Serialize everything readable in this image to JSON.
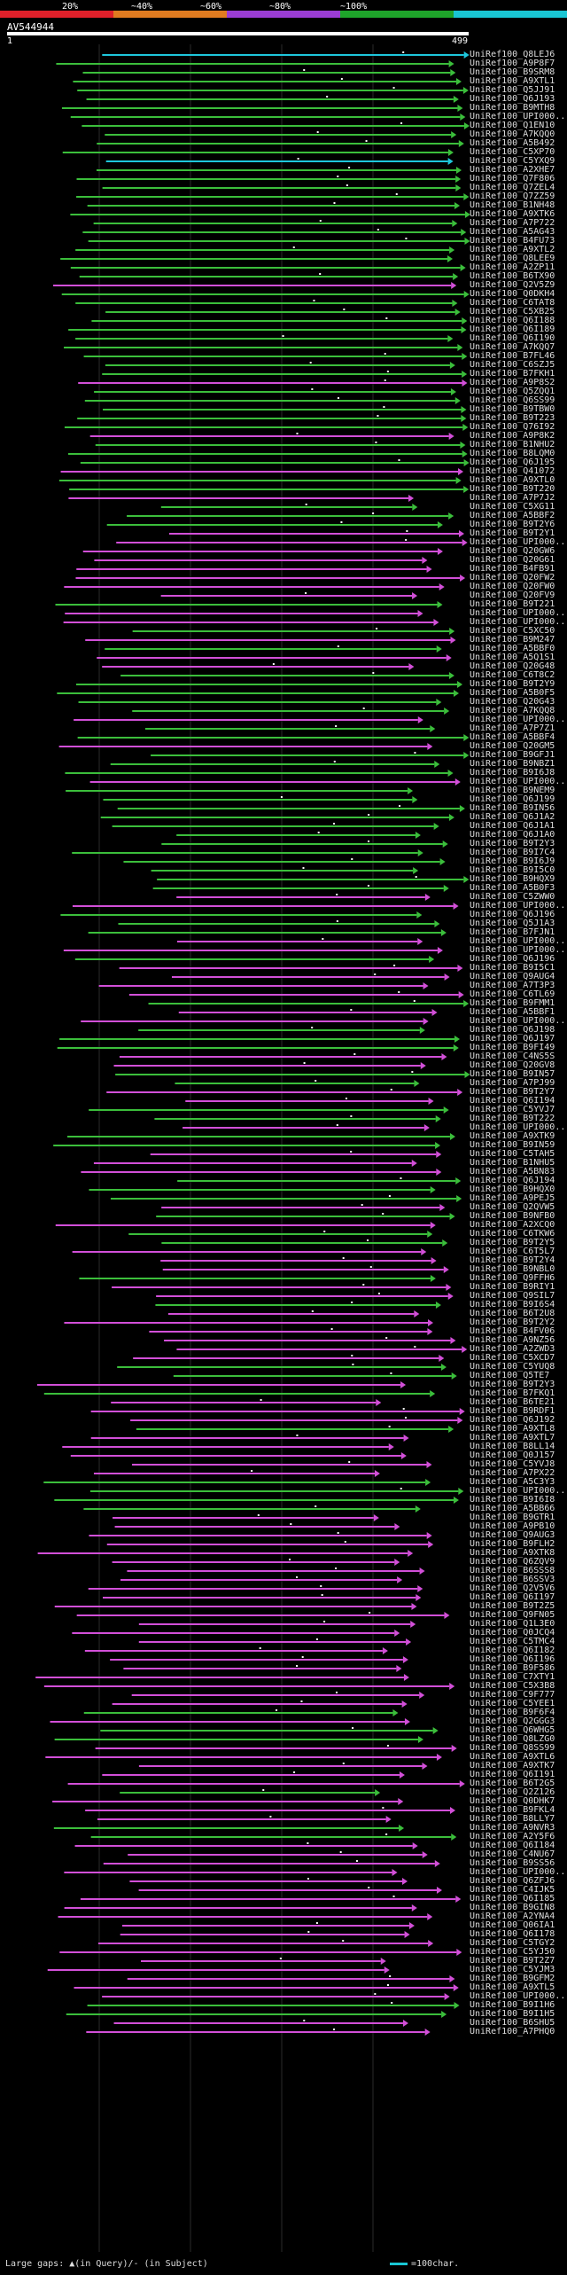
{
  "scale": {
    "labels": [
      "20%",
      "~40%",
      "~60%",
      "~80%",
      "~100%"
    ],
    "colors": [
      "#e0202a",
      "#e07b20",
      "#9b3dd4",
      "#1ea42a",
      "#19c6d4"
    ]
  },
  "query": {
    "name": "AV544944",
    "start": "1",
    "end": "499"
  },
  "colors": {
    "magenta": "#d24fd8",
    "green": "#3bbe3b",
    "cyan": "#1ec7dc",
    "grid": "#2a2a2a"
  },
  "hits": [
    {
      "label": "UniRef100_Q8LEJ6",
      "color": "cyan"
    },
    {
      "label": "UniRef100_A9P8F7",
      "color": "green"
    },
    {
      "label": "UniRef100_B9SRM8",
      "color": "green"
    },
    {
      "label": "UniRef100_A9XTL1",
      "color": "green"
    },
    {
      "label": "UniRef100_Q5JJ91",
      "color": "green"
    },
    {
      "label": "UniRef100_Q6J193",
      "color": "green"
    },
    {
      "label": "UniRef100_B9MTH8",
      "color": "green"
    },
    {
      "label": "UniRef100_UPI000...",
      "color": "green"
    },
    {
      "label": "UniRef100_Q1EN10",
      "color": "green"
    },
    {
      "label": "UniRef100_A7KQQ0",
      "color": "green"
    },
    {
      "label": "UniRef100_A5B492",
      "color": "green"
    },
    {
      "label": "UniRef100_C5XP70",
      "color": "green"
    },
    {
      "label": "UniRef100_C5YXQ9",
      "color": "cyan"
    },
    {
      "label": "UniRef100_A2XHE7",
      "color": "green"
    },
    {
      "label": "UniRef100_Q7F806",
      "color": "green"
    },
    {
      "label": "UniRef100_Q7ZEL4",
      "color": "green"
    },
    {
      "label": "UniRef100_Q7ZZ59",
      "color": "green"
    },
    {
      "label": "UniRef100_B1NH48",
      "color": "green"
    },
    {
      "label": "UniRef100_A9XTK6",
      "color": "green"
    },
    {
      "label": "UniRef100_A7P722",
      "color": "green"
    },
    {
      "label": "UniRef100_A5AG43",
      "color": "green"
    },
    {
      "label": "UniRef100_B4FU73",
      "color": "green"
    },
    {
      "label": "UniRef100_A9XTL2",
      "color": "green"
    },
    {
      "label": "UniRef100_Q8LEE9",
      "color": "green"
    },
    {
      "label": "UniRef100_A2ZP11",
      "color": "green"
    },
    {
      "label": "UniRef100_B6TX90",
      "color": "green"
    },
    {
      "label": "UniRef100_Q2V5Z9",
      "color": "magenta"
    },
    {
      "label": "UniRef100_Q0DKH4",
      "color": "green"
    },
    {
      "label": "UniRef100_C6TAT8",
      "color": "green"
    },
    {
      "label": "UniRef100_C5XB25",
      "color": "green"
    },
    {
      "label": "UniRef100_Q6I188",
      "color": "green"
    },
    {
      "label": "UniRef100_Q6I189",
      "color": "green"
    },
    {
      "label": "UniRef100_Q6I190",
      "color": "green"
    },
    {
      "label": "UniRef100_A7KQQ7",
      "color": "green"
    },
    {
      "label": "UniRef100_B7FL46",
      "color": "green"
    },
    {
      "label": "UniRef100_C6SZJ5",
      "color": "green"
    },
    {
      "label": "UniRef100_B7FKH1",
      "color": "green"
    },
    {
      "label": "UniRef100_A9P8S2",
      "color": "magenta"
    },
    {
      "label": "UniRef100_Q5ZQQ1",
      "color": "green"
    },
    {
      "label": "UniRef100_Q6SS99",
      "color": "green"
    },
    {
      "label": "UniRef100_B9TBW0",
      "color": "green"
    },
    {
      "label": "UniRef100_B9T223",
      "color": "green"
    },
    {
      "label": "UniRef100_Q76I92",
      "color": "green"
    },
    {
      "label": "UniRef100_A9P8K2",
      "color": "magenta"
    },
    {
      "label": "UniRef100_B1NHU2",
      "color": "green"
    },
    {
      "label": "UniRef100_B8LQM0",
      "color": "green"
    },
    {
      "label": "UniRef100_Q6J195",
      "color": "green"
    },
    {
      "label": "UniRef100_Q41072",
      "color": "magenta"
    },
    {
      "label": "UniRef100_A9XTL0",
      "color": "green"
    },
    {
      "label": "UniRef100_B9T220",
      "color": "green"
    },
    {
      "label": "UniRef100_A7P7J2",
      "color": "magenta"
    },
    {
      "label": "UniRef100_C5XG11",
      "color": "green"
    },
    {
      "label": "UniRef100_A5BBF2",
      "color": "green"
    },
    {
      "label": "UniRef100_B9T2Y6",
      "color": "green"
    },
    {
      "label": "UniRef100_B9T2Y1",
      "color": "magenta"
    },
    {
      "label": "UniRef100_UPI000...",
      "color": "magenta"
    },
    {
      "label": "UniRef100_Q20GW6",
      "color": "magenta"
    },
    {
      "label": "UniRef100_Q20G61",
      "color": "magenta"
    },
    {
      "label": "UniRef100_B4FB91",
      "color": "magenta"
    },
    {
      "label": "UniRef100_Q20FW2",
      "color": "magenta"
    },
    {
      "label": "UniRef100_Q20FW0",
      "color": "magenta"
    },
    {
      "label": "UniRef100_Q20FV9",
      "color": "magenta"
    },
    {
      "label": "UniRef100_B9T221",
      "color": "green"
    },
    {
      "label": "UniRef100_UPI000...",
      "color": "magenta"
    },
    {
      "label": "UniRef100_UPI000...",
      "color": "magenta"
    },
    {
      "label": "UniRef100_C5XC50",
      "color": "green"
    },
    {
      "label": "UniRef100_B9M247",
      "color": "magenta"
    },
    {
      "label": "UniRef100_A5BBF0",
      "color": "green"
    },
    {
      "label": "UniRef100_A5Q1S1",
      "color": "magenta"
    },
    {
      "label": "UniRef100_Q20G48",
      "color": "magenta"
    },
    {
      "label": "UniRef100_C6T8C2",
      "color": "green"
    },
    {
      "label": "UniRef100_B9T2Y9",
      "color": "green"
    },
    {
      "label": "UniRef100_A5B0F5",
      "color": "green"
    },
    {
      "label": "UniRef100_Q20G43",
      "color": "green"
    },
    {
      "label": "UniRef100_A7KQQ8",
      "color": "green"
    },
    {
      "label": "UniRef100_UPI000...",
      "color": "magenta"
    },
    {
      "label": "UniRef100_A7P7Z1",
      "color": "green"
    },
    {
      "label": "UniRef100_A5BBF4",
      "color": "green"
    },
    {
      "label": "UniRef100_Q20GM5",
      "color": "magenta"
    },
    {
      "label": "UniRef100_B9GFJ1",
      "color": "green"
    },
    {
      "label": "UniRef100_B9NBZ1",
      "color": "green"
    },
    {
      "label": "UniRef100_B9I6J8",
      "color": "green"
    },
    {
      "label": "UniRef100_UPI000...",
      "color": "magenta"
    },
    {
      "label": "UniRef100_B9NEM9",
      "color": "green"
    },
    {
      "label": "UniRef100_Q6J199",
      "color": "green"
    },
    {
      "label": "UniRef100_B9IN56",
      "color": "green"
    },
    {
      "label": "UniRef100_Q6J1A2",
      "color": "green"
    },
    {
      "label": "UniRef100_Q6J1A1",
      "color": "green"
    },
    {
      "label": "UniRef100_Q6J1A0",
      "color": "green"
    },
    {
      "label": "UniRef100_B9T2Y3",
      "color": "green"
    },
    {
      "label": "UniRef100_B9I7C4",
      "color": "green"
    },
    {
      "label": "UniRef100_B9I6J9",
      "color": "green"
    },
    {
      "label": "UniRef100_B9I5C0",
      "color": "green"
    },
    {
      "label": "UniRef100_B9HQX9",
      "color": "green"
    },
    {
      "label": "UniRef100_A5B0F3",
      "color": "green"
    },
    {
      "label": "UniRef100_C5ZWW0",
      "color": "magenta"
    },
    {
      "label": "UniRef100_UPI000...",
      "color": "magenta"
    },
    {
      "label": "UniRef100_Q6J196",
      "color": "green"
    },
    {
      "label": "UniRef100_Q5J1A3",
      "color": "green"
    },
    {
      "label": "UniRef100_B7FJN1",
      "color": "green"
    },
    {
      "label": "UniRef100_UPI000...",
      "color": "magenta"
    },
    {
      "label": "UniRef100_UPI000...",
      "color": "magenta"
    },
    {
      "label": "UniRef100_Q6J196",
      "color": "green"
    },
    {
      "label": "UniRef100_B9I5C1",
      "color": "magenta"
    },
    {
      "label": "UniRef100_Q9AUG4",
      "color": "magenta"
    },
    {
      "label": "UniRef100_A7T3P3",
      "color": "magenta"
    },
    {
      "label": "UniRef100_C6TL69",
      "color": "magenta"
    },
    {
      "label": "UniRef100_B9FMM1",
      "color": "green"
    },
    {
      "label": "UniRef100_A5BBF1",
      "color": "magenta"
    },
    {
      "label": "UniRef100_UPI000...",
      "color": "magenta"
    },
    {
      "label": "UniRef100_Q6J198",
      "color": "green"
    },
    {
      "label": "UniRef100_Q6J197",
      "color": "green"
    },
    {
      "label": "UniRef100_B9FI49",
      "color": "green"
    },
    {
      "label": "UniRef100_C4NS5S",
      "color": "magenta"
    },
    {
      "label": "UniRef100_Q20GV8",
      "color": "magenta"
    },
    {
      "label": "UniRef100_B9IN57",
      "color": "green"
    },
    {
      "label": "UniRef100_A7PJ99",
      "color": "green"
    },
    {
      "label": "UniRef100_B9T2Y7",
      "color": "magenta"
    },
    {
      "label": "UniRef100_Q6I194",
      "color": "magenta"
    },
    {
      "label": "UniRef100_C5YVJ7",
      "color": "green"
    },
    {
      "label": "UniRef100_B9T222",
      "color": "green"
    },
    {
      "label": "UniRef100_UPI000...",
      "color": "magenta"
    },
    {
      "label": "UniRef100_A9XTK9",
      "color": "green"
    },
    {
      "label": "UniRef100_B9IN59",
      "color": "green"
    },
    {
      "label": "UniRef100_C5TAH5",
      "color": "magenta"
    },
    {
      "label": "UniRef100_B1NHU5",
      "color": "magenta"
    },
    {
      "label": "UniRef100_A5BN83",
      "color": "magenta"
    },
    {
      "label": "UniRef100_Q6J194",
      "color": "green"
    },
    {
      "label": "UniRef100_B9HQX0",
      "color": "green"
    },
    {
      "label": "UniRef100_A9PEJ5",
      "color": "green"
    },
    {
      "label": "UniRef100_Q2QVW5",
      "color": "magenta"
    },
    {
      "label": "UniRef100_B9NFB0",
      "color": "green"
    },
    {
      "label": "UniRef100_A2XCQ0",
      "color": "magenta"
    },
    {
      "label": "UniRef100_C6TKW6",
      "color": "green"
    },
    {
      "label": "UniRef100_B9T2Y5",
      "color": "green"
    },
    {
      "label": "UniRef100_C6T5L7",
      "color": "magenta"
    },
    {
      "label": "UniRef100_B9T2Y4",
      "color": "magenta"
    },
    {
      "label": "UniRef100_B9NBL0",
      "color": "magenta"
    },
    {
      "label": "UniRef100_Q9FFH6",
      "color": "green"
    },
    {
      "label": "UniRef100_B9RIY1",
      "color": "magenta"
    },
    {
      "label": "UniRef100_Q9SIL7",
      "color": "magenta"
    },
    {
      "label": "UniRef100_B9I6S4",
      "color": "green"
    },
    {
      "label": "UniRef100_B6T2U8",
      "color": "magenta"
    },
    {
      "label": "UniRef100_B9T2Y2",
      "color": "magenta"
    },
    {
      "label": "UniRef100_B4FV06",
      "color": "magenta"
    },
    {
      "label": "UniRef100_A9NZ56",
      "color": "magenta"
    },
    {
      "label": "UniRef100_A2ZWD3",
      "color": "magenta"
    },
    {
      "label": "UniRef100_C5XCD7",
      "color": "magenta"
    },
    {
      "label": "UniRef100_C5YUQ8",
      "color": "green"
    },
    {
      "label": "UniRef100_Q5TE7",
      "color": "green"
    },
    {
      "label": "UniRef100_B9T2Y3",
      "color": "magenta"
    },
    {
      "label": "UniRef100_B7FKQ1",
      "color": "green"
    },
    {
      "label": "UniRef100_B6TE21",
      "color": "magenta"
    },
    {
      "label": "UniRef100_B9RDF1",
      "color": "magenta"
    },
    {
      "label": "UniRef100_Q6J192",
      "color": "magenta"
    },
    {
      "label": "UniRef100_A9XTL8",
      "color": "green"
    },
    {
      "label": "UniRef100_A9XTL7",
      "color": "magenta"
    },
    {
      "label": "UniRef100_B8LL14",
      "color": "magenta"
    },
    {
      "label": "UniRef100_Q0J157",
      "color": "magenta"
    },
    {
      "label": "UniRef100_C5YVJ8",
      "color": "magenta"
    },
    {
      "label": "UniRef100_A7PX22",
      "color": "magenta"
    },
    {
      "label": "UniRef100_A5C3Y3",
      "color": "green"
    },
    {
      "label": "UniRef100_UPI000...",
      "color": "green"
    },
    {
      "label": "UniRef100_B9I6I8",
      "color": "green"
    },
    {
      "label": "UniRef100_A5BB66",
      "color": "green"
    },
    {
      "label": "UniRef100_B9GTR1",
      "color": "magenta"
    },
    {
      "label": "UniRef100_A9PB10",
      "color": "magenta"
    },
    {
      "label": "UniRef100_Q9AUG3",
      "color": "magenta"
    },
    {
      "label": "UniRef100_B9FLH2",
      "color": "magenta"
    },
    {
      "label": "UniRef100_A9XTK8",
      "color": "magenta"
    },
    {
      "label": "UniRef100_Q6ZQV9",
      "color": "magenta"
    },
    {
      "label": "UniRef100_B6SSS8",
      "color": "magenta"
    },
    {
      "label": "UniRef100_B6SSV3",
      "color": "magenta"
    },
    {
      "label": "UniRef100_Q2V5V6",
      "color": "magenta"
    },
    {
      "label": "UniRef100_Q6I197",
      "color": "magenta"
    },
    {
      "label": "UniRef100_B9T2Z5",
      "color": "magenta"
    },
    {
      "label": "UniRef100_Q9FN05",
      "color": "magenta"
    },
    {
      "label": "UniRef100_Q1L3E0",
      "color": "magenta"
    },
    {
      "label": "UniRef100_Q0JCQ4",
      "color": "magenta"
    },
    {
      "label": "UniRef100_C5TMC4",
      "color": "magenta"
    },
    {
      "label": "UniRef100_Q6I182",
      "color": "magenta"
    },
    {
      "label": "UniRef100_Q6I196",
      "color": "magenta"
    },
    {
      "label": "UniRef100_B9F586",
      "color": "magenta"
    },
    {
      "label": "UniRef100_C7XTY1",
      "color": "magenta"
    },
    {
      "label": "UniRef100_C5X3B8",
      "color": "magenta"
    },
    {
      "label": "UniRef100_C9F777",
      "color": "magenta"
    },
    {
      "label": "UniRef100_C5YEE1",
      "color": "magenta"
    },
    {
      "label": "UniRef100_B9F6F4",
      "color": "green"
    },
    {
      "label": "UniRef100_Q2GGG3",
      "color": "magenta"
    },
    {
      "label": "UniRef100_Q6WHG5",
      "color": "green"
    },
    {
      "label": "UniRef100_Q8LZG0",
      "color": "green"
    },
    {
      "label": "UniRef100_Q8SS99",
      "color": "magenta"
    },
    {
      "label": "UniRef100_A9XTL6",
      "color": "magenta"
    },
    {
      "label": "UniRef100_A9XTK7",
      "color": "magenta"
    },
    {
      "label": "UniRef100_Q6I191",
      "color": "magenta"
    },
    {
      "label": "UniRef100_B6T2G5",
      "color": "magenta"
    },
    {
      "label": "UniRef100_Q2Z126",
      "color": "green"
    },
    {
      "label": "UniRef100_Q0DHK7",
      "color": "magenta"
    },
    {
      "label": "UniRef100_B9FKL4",
      "color": "magenta"
    },
    {
      "label": "UniRef100_B8LLY7",
      "color": "magenta"
    },
    {
      "label": "UniRef100_A9NVR3",
      "color": "green"
    },
    {
      "label": "UniRef100_A2Y5F6",
      "color": "green"
    },
    {
      "label": "UniRef100_Q6I184",
      "color": "magenta"
    },
    {
      "label": "UniRef100_C4NU67",
      "color": "magenta"
    },
    {
      "label": "UniRef100_B9SS56",
      "color": "magenta"
    },
    {
      "label": "UniRef100_UPI000...",
      "color": "magenta"
    },
    {
      "label": "UniRef100_Q6ZFJ6",
      "color": "magenta"
    },
    {
      "label": "UniRef100_C4IJK5",
      "color": "magenta"
    },
    {
      "label": "UniRef100_Q6I185",
      "color": "magenta"
    },
    {
      "label": "UniRef100_B9GIN8",
      "color": "magenta"
    },
    {
      "label": "UniRef100_A2YNA4",
      "color": "magenta"
    },
    {
      "label": "UniRef100_Q06IA1",
      "color": "magenta"
    },
    {
      "label": "UniRef100_Q6I178",
      "color": "magenta"
    },
    {
      "label": "UniRef100_C5TGY2",
      "color": "magenta"
    },
    {
      "label": "UniRef100_C5YJ50",
      "color": "magenta"
    },
    {
      "label": "UniRef100_B9T2Z7",
      "color": "magenta"
    },
    {
      "label": "UniRef100_C5YJM3",
      "color": "magenta"
    },
    {
      "label": "UniRef100_B9GFM2",
      "color": "magenta"
    },
    {
      "label": "UniRef100_A9XTL5",
      "color": "magenta"
    },
    {
      "label": "UniRef100_UPI000...",
      "color": "magenta"
    },
    {
      "label": "UniRef100_B9I1H6",
      "color": "green"
    },
    {
      "label": "UniRef100_B9I1H5",
      "color": "green"
    },
    {
      "label": "UniRef100_B6SHU5",
      "color": "magenta"
    },
    {
      "label": "UniRef100_A7PHQ0",
      "color": "magenta"
    }
  ],
  "footer": {
    "legend": "Large gaps: ▲(in Query)/- (in Subject)",
    "scale_label": "=100char."
  }
}
